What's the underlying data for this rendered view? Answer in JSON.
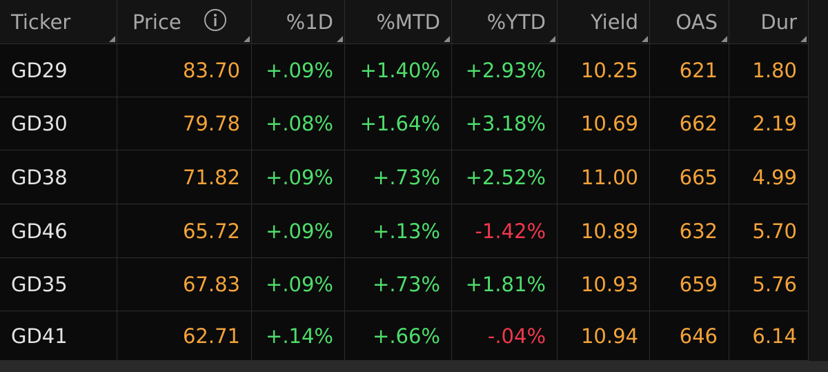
{
  "table": {
    "columns": [
      "Ticker",
      "Price",
      "%1D",
      "%MTD",
      "%YTD",
      "Yield",
      "OAS",
      "Dur"
    ],
    "rows": [
      [
        "GD29",
        "83.70",
        "+.09%",
        "+1.40%",
        "+2.93%",
        "10.25",
        "621",
        "1.80"
      ],
      [
        "GD30",
        "79.78",
        "+.08%",
        "+1.64%",
        "+3.18%",
        "10.69",
        "662",
        "2.19"
      ],
      [
        "GD38",
        "71.82",
        "+.09%",
        "+.73%",
        "+2.52%",
        "11.00",
        "665",
        "4.99"
      ],
      [
        "GD46",
        "65.72",
        "+.09%",
        "+.13%",
        "-1.42%",
        "10.89",
        "632",
        "5.70"
      ],
      [
        "GD35",
        "67.83",
        "+.09%",
        "+.73%",
        "+1.81%",
        "10.93",
        "659",
        "5.76"
      ],
      [
        "GD41",
        "62.71",
        "+.14%",
        "+.66%",
        "-.04%",
        "10.94",
        "646",
        "6.14"
      ]
    ],
    "column_colors": [
      "#e4e4e4",
      "#f5a33a",
      "#4ede6c",
      "#4ede6c",
      "#4ede6c",
      "#f5a33a",
      "#f5a33a",
      "#f5a33a"
    ],
    "negative_color": "#f0384c",
    "header_color": "#a8a8a8"
  }
}
